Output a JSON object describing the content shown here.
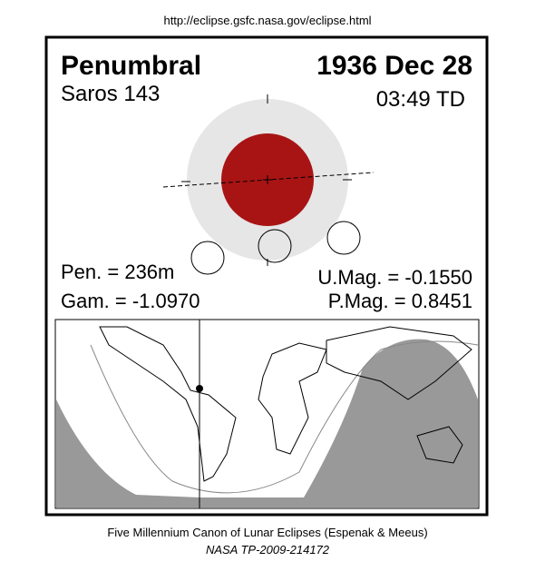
{
  "source_url": "http://eclipse.gsfc.nasa.gov/eclipse.html",
  "header": {
    "eclipse_type": "Penumbral",
    "date": "1936 Dec 28",
    "saros": "Saros 143",
    "time": "03:49 TD"
  },
  "parameters": {
    "pen_duration": "Pen. = 236m",
    "umbral_magnitude": "U.Mag. = -0.1550",
    "gamma": "Gam. = -1.0970",
    "penumbral_magnitude": "P.Mag. = 0.8451"
  },
  "footer": {
    "canon": "Five Millennium Canon of Lunar Eclipses (Espenak & Meeus)",
    "reference": "NASA TP-2009-214172"
  }
}
